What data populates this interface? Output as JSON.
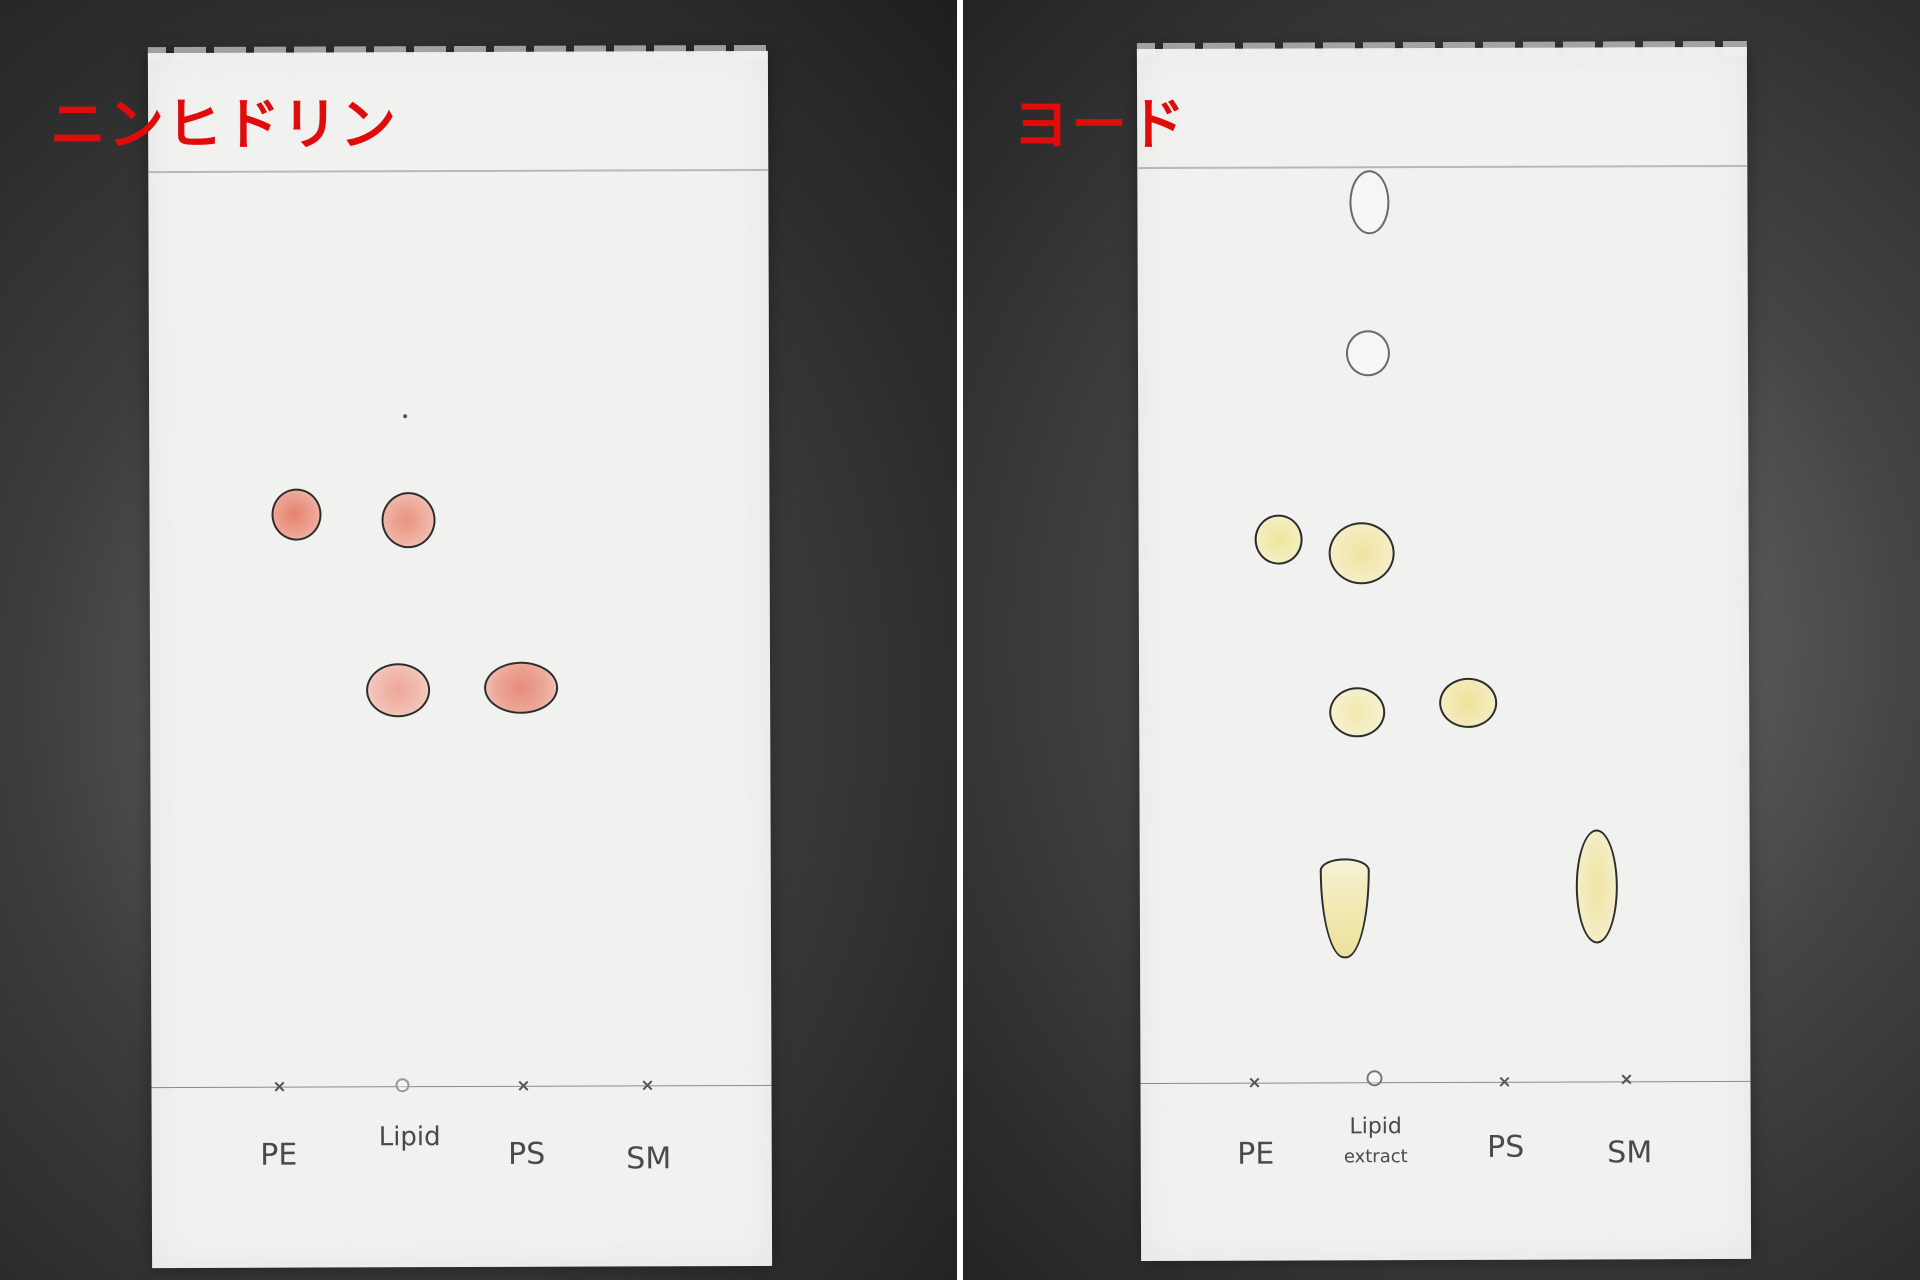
{
  "left_panel": {
    "stain_label": "ニンヒドリン",
    "lanes": [
      {
        "label": "PE"
      },
      {
        "label": "Lipid"
      },
      {
        "label": "PS"
      },
      {
        "label": "SM"
      }
    ],
    "spot_color": "#e8968a"
  },
  "right_panel": {
    "stain_label": "ヨード",
    "lanes": [
      {
        "label": "PE"
      },
      {
        "label": "Lipid",
        "label_line2": "extract"
      },
      {
        "label": "PS"
      },
      {
        "label": "SM"
      }
    ],
    "spot_color": "#f3eeb0"
  },
  "colors": {
    "label_red": "#e00c0c",
    "plate": "#f1f1f0",
    "background": "#2b2b2b"
  }
}
